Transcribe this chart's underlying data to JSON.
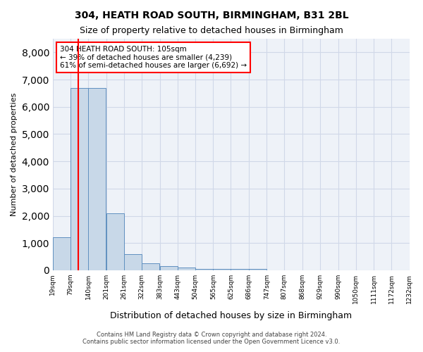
{
  "title": "304, HEATH ROAD SOUTH, BIRMINGHAM, B31 2BL",
  "subtitle": "Size of property relative to detached houses in Birmingham",
  "xlabel": "Distribution of detached houses by size in Birmingham",
  "ylabel": "Number of detached properties",
  "footer_line1": "Contains HM Land Registry data © Crown copyright and database right 2024.",
  "footer_line2": "Contains public sector information licensed under the Open Government Licence v3.0.",
  "annotation_line1": "304 HEATH ROAD SOUTH: 105sqm",
  "annotation_line2": "← 39% of detached houses are smaller (4,239)",
  "annotation_line3": "61% of semi-detached houses are larger (6,692) →",
  "bar_color": "#c8d8e8",
  "bar_edge_color": "#6090c0",
  "redline_x": 105,
  "ylim": [
    0,
    8500
  ],
  "yticks": [
    0,
    1000,
    2000,
    3000,
    4000,
    5000,
    6000,
    7000,
    8000
  ],
  "bin_edges": [
    19,
    79,
    140,
    201,
    261,
    322,
    383,
    443,
    504,
    565,
    625,
    686,
    747,
    807,
    868,
    929,
    990,
    1050,
    1111,
    1172,
    1232
  ],
  "bin_labels": [
    "19sqm",
    "79sqm",
    "140sqm",
    "201sqm",
    "261sqm",
    "322sqm",
    "383sqm",
    "443sqm",
    "504sqm",
    "565sqm",
    "625sqm",
    "686sqm",
    "747sqm",
    "807sqm",
    "868sqm",
    "929sqm",
    "990sqm",
    "1050sqm",
    "1111sqm",
    "1172sqm",
    "1232sqm"
  ],
  "bar_heights": [
    1200,
    6700,
    6700,
    2100,
    600,
    250,
    150,
    100,
    55,
    55,
    55,
    55,
    0,
    0,
    0,
    0,
    0,
    0,
    0,
    0
  ],
  "annotation_box_color": "white",
  "annotation_box_edge_color": "red",
  "grid_color": "#d0d8e8",
  "background_color": "#eef2f8"
}
